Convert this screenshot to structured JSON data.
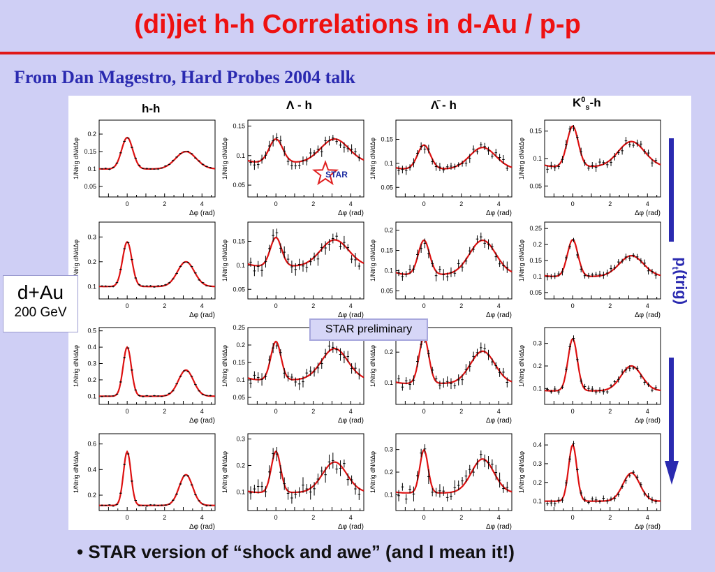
{
  "slide": {
    "title": "(di)jet h-h Correlations in d-Au / p-p",
    "subtitle": "From Dan Magestro, Hard Probes 2004 talk",
    "bullet": "• STAR version of “shock and awe” (and I mean it!)",
    "dau_label": "d+Au",
    "dau_energy": "200 GeV",
    "preliminary": "STAR preliminary",
    "trigger_axis_label": "pt(trig)",
    "star_logo": "STAR",
    "colors": {
      "title": "#ee1111",
      "subtitle": "#2a2ab0",
      "fit": "#dd1111",
      "arrow": "#2a2ab0"
    }
  },
  "chart_data": {
    "type": "line",
    "rows": 4,
    "columns": [
      "h-h",
      "Λ - h",
      "Λ̄ - h",
      "K0s-h"
    ],
    "xlabel": "Δφ (rad)",
    "ylabel": "1/Ntrig dN/dΔφ",
    "xlim": [
      -1.5,
      4.7
    ],
    "xticks": [
      0,
      2,
      4
    ],
    "grid": false,
    "series_style": {
      "data": "black points with error bars",
      "fit": "red line"
    },
    "panels": [
      {
        "row": 1,
        "col": "h-h",
        "ylim": [
          0.02,
          0.24
        ],
        "yticks": [
          0.05,
          0.1,
          0.15,
          0.2
        ],
        "base": 0.1,
        "near": 0.09,
        "away": 0.05,
        "near_w": 0.3,
        "away_w": 0.55,
        "err": 0.002,
        "seed": 1
      },
      {
        "row": 1,
        "col": "Λ - h",
        "ylim": [
          0.03,
          0.16
        ],
        "yticks": [
          0.05,
          0.1,
          0.15
        ],
        "base": 0.088,
        "near": 0.04,
        "away": 0.04,
        "near_w": 0.36,
        "away_w": 0.75,
        "err": 0.008,
        "seed": 2
      },
      {
        "row": 1,
        "col": "Λ̄ - h",
        "ylim": [
          0.03,
          0.19
        ],
        "yticks": [
          0.05,
          0.1,
          0.15
        ],
        "base": 0.088,
        "near": 0.05,
        "away": 0.045,
        "near_w": 0.34,
        "away_w": 0.7,
        "err": 0.008,
        "seed": 3
      },
      {
        "row": 1,
        "col": "K0s-h",
        "ylim": [
          0.03,
          0.17
        ],
        "yticks": [
          0.05,
          0.1,
          0.15
        ],
        "base": 0.085,
        "near": 0.074,
        "away": 0.046,
        "near_w": 0.3,
        "away_w": 0.7,
        "err": 0.007,
        "seed": 4
      },
      {
        "row": 2,
        "col": "h-h",
        "ylim": [
          0.05,
          0.36
        ],
        "yticks": [
          0.1,
          0.2,
          0.3
        ],
        "base": 0.1,
        "near": 0.18,
        "away": 0.1,
        "near_w": 0.25,
        "away_w": 0.45,
        "err": 0.003,
        "seed": 5
      },
      {
        "row": 2,
        "col": "Λ - h",
        "ylim": [
          0.03,
          0.19
        ],
        "yticks": [
          0.05,
          0.1,
          0.15
        ],
        "base": 0.098,
        "near": 0.06,
        "away": 0.055,
        "near_w": 0.3,
        "away_w": 0.75,
        "err": 0.012,
        "seed": 6
      },
      {
        "row": 2,
        "col": "Λ̄ - h",
        "ylim": [
          0.03,
          0.22
        ],
        "yticks": [
          0.05,
          0.1,
          0.15,
          0.2
        ],
        "base": 0.09,
        "near": 0.085,
        "away": 0.085,
        "near_w": 0.3,
        "away_w": 0.7,
        "err": 0.012,
        "seed": 7
      },
      {
        "row": 2,
        "col": "K0s-h",
        "ylim": [
          0.03,
          0.27
        ],
        "yticks": [
          0.05,
          0.1,
          0.15,
          0.2,
          0.25
        ],
        "base": 0.1,
        "near": 0.115,
        "away": 0.065,
        "near_w": 0.28,
        "away_w": 0.65,
        "err": 0.01,
        "seed": 8
      },
      {
        "row": 3,
        "col": "h-h",
        "ylim": [
          0.05,
          0.52
        ],
        "yticks": [
          0.1,
          0.2,
          0.3,
          0.4,
          0.5
        ],
        "base": 0.1,
        "near": 0.3,
        "away": 0.16,
        "near_w": 0.22,
        "away_w": 0.4,
        "err": 0.004,
        "seed": 9
      },
      {
        "row": 3,
        "col": "Λ - h",
        "ylim": [
          0.03,
          0.25
        ],
        "yticks": [
          0.05,
          0.1,
          0.15,
          0.2,
          0.25
        ],
        "base": 0.1,
        "near": 0.11,
        "away": 0.09,
        "near_w": 0.27,
        "away_w": 0.7,
        "err": 0.015,
        "seed": 10
      },
      {
        "row": 3,
        "col": "Λ̄ - h",
        "ylim": [
          0.03,
          0.28
        ],
        "yticks": [
          0.1,
          0.2
        ],
        "base": 0.098,
        "near": 0.15,
        "away": 0.105,
        "near_w": 0.26,
        "away_w": 0.65,
        "err": 0.016,
        "seed": 11
      },
      {
        "row": 3,
        "col": "K0s-h",
        "ylim": [
          0.03,
          0.37
        ],
        "yticks": [
          0.1,
          0.2,
          0.3
        ],
        "base": 0.09,
        "near": 0.23,
        "away": 0.11,
        "near_w": 0.25,
        "away_w": 0.55,
        "err": 0.012,
        "seed": 12
      },
      {
        "row": 4,
        "col": "h-h",
        "ylim": [
          0.08,
          0.68
        ],
        "yticks": [
          0.2,
          0.4,
          0.6
        ],
        "base": 0.12,
        "near": 0.42,
        "away": 0.24,
        "near_w": 0.2,
        "away_w": 0.36,
        "err": 0.006,
        "seed": 13
      },
      {
        "row": 4,
        "col": "Λ - h",
        "ylim": [
          0.03,
          0.32
        ],
        "yticks": [
          0.1,
          0.2,
          0.3
        ],
        "base": 0.098,
        "near": 0.155,
        "away": 0.115,
        "near_w": 0.25,
        "away_w": 0.65,
        "err": 0.025,
        "seed": 14
      },
      {
        "row": 4,
        "col": "Λ̄ - h",
        "ylim": [
          0.03,
          0.37
        ],
        "yticks": [
          0.1,
          0.2,
          0.3
        ],
        "base": 0.108,
        "near": 0.19,
        "away": 0.15,
        "near_w": 0.22,
        "away_w": 0.6,
        "err": 0.028,
        "seed": 15
      },
      {
        "row": 4,
        "col": "K0s-h",
        "ylim": [
          0.05,
          0.46
        ],
        "yticks": [
          0.1,
          0.2,
          0.3,
          0.4
        ],
        "base": 0.1,
        "near": 0.3,
        "away": 0.15,
        "near_w": 0.22,
        "away_w": 0.45,
        "err": 0.015,
        "seed": 16
      }
    ]
  }
}
